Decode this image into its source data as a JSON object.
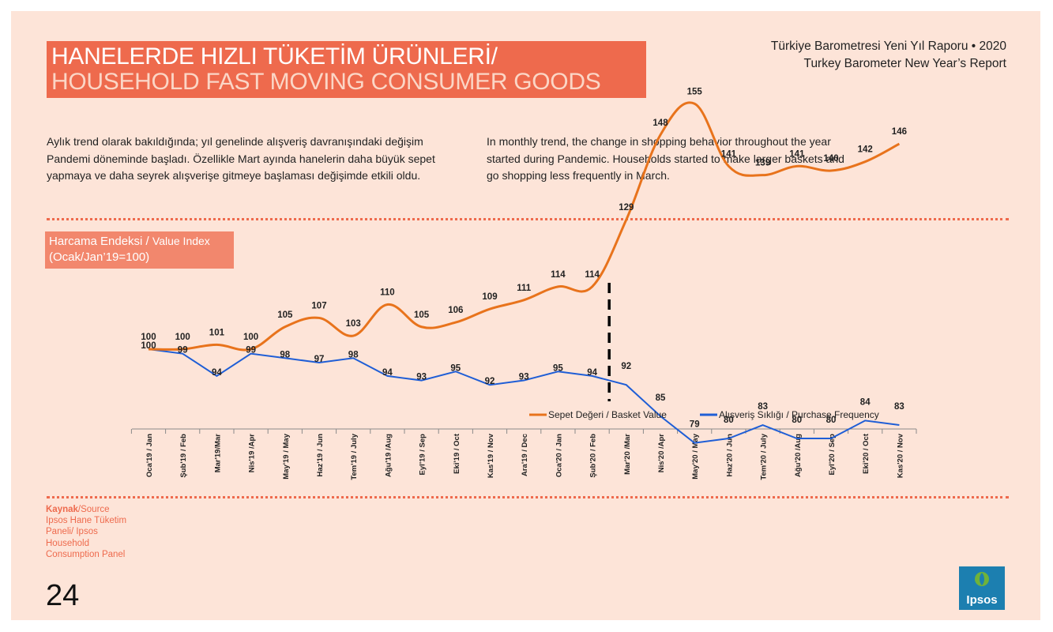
{
  "header": {
    "title_tr": "HANELERDE HIZLI TÜKETİM ÜRÜNLERİ/",
    "title_en": "HOUSEHOLD FAST MOVING CONSUMER GOODS",
    "report_tr": "Türkiye Barometresi Yeni Yıl Raporu • 2020",
    "report_en": "Turkey Barometer New Year’s Report"
  },
  "intro": {
    "text_tr": "Aylık trend olarak bakıldığında; yıl genelinde alışveriş davranışındaki değişim Pandemi döneminde başladı. Özellikle Mart ayında hanelerin daha büyük sepet yapmaya ve daha seyrek alışverişe gitmeye başlaması değişimde etkili oldu.",
    "text_en": "In monthly trend, the change in shopping behavior throughout the year started during Pandemic. Households started to make larger baskets and go shopping less frequently in March."
  },
  "index_label": {
    "tr": "Harcama Endeksi /",
    "en": "Value Index",
    "base": "(Ocak/Jan’19=100)"
  },
  "source": {
    "label_bold": "Kaynak",
    "label_rest": "/Source",
    "text": "Ipsos Hane Tüketim Paneli/ Ipsos Household Consumption Panel"
  },
  "page_number": "24",
  "logo_text": "Ipsos",
  "colors": {
    "background": "#fde4d8",
    "accent": "#ee6a4d",
    "basket": "#e8731c",
    "frequency": "#1f5ed6"
  },
  "chart_data": {
    "type": "line",
    "categories": [
      "Oca'19 / Jan",
      "Şub'19 / Feb",
      "Mar'19/Mar",
      "Nis'19 /Apr",
      "May'19 / May",
      "Haz'19 / Jun",
      "Tem'19 / July",
      "Ağu'19 /Aug",
      "Eyl'19 / Sep",
      "Eki'19 / Oct",
      "Kas'19 / Nov",
      "Ara'19 / Dec",
      "Oca'20 / Jan",
      "Şub'20 / Feb",
      "Mar'20 /Mar",
      "Nis'20 /Apr",
      "May'20 / May",
      "Haz'20 / Jun",
      "Tem'20 / July",
      "Ağu'20 /Aug",
      "Eyl'20 / Sep",
      "Eki'20 / Oct",
      "Kas'20 / Nov"
    ],
    "series": [
      {
        "name": "Sepet Değeri / Basket Value",
        "color": "#e8731c",
        "values": [
          100,
          100,
          101,
          100,
          105,
          107,
          103,
          110,
          105,
          106,
          109,
          111,
          114,
          114,
          129,
          148,
          155,
          141,
          139,
          141,
          140,
          142,
          146
        ]
      },
      {
        "name": "Alışveriş Sıklığı / Purchase Frequency",
        "color": "#1f5ed6",
        "values": [
          100,
          99,
          94,
          99,
          98,
          97,
          98,
          94,
          93,
          95,
          92,
          93,
          95,
          94,
          92,
          85,
          79,
          80,
          83,
          80,
          80,
          84,
          83
        ]
      }
    ],
    "event_marker_after": "Şub'20 / Feb",
    "ylim": [
      60,
      170
    ],
    "legend_position": "bottom-right",
    "grid": false
  }
}
